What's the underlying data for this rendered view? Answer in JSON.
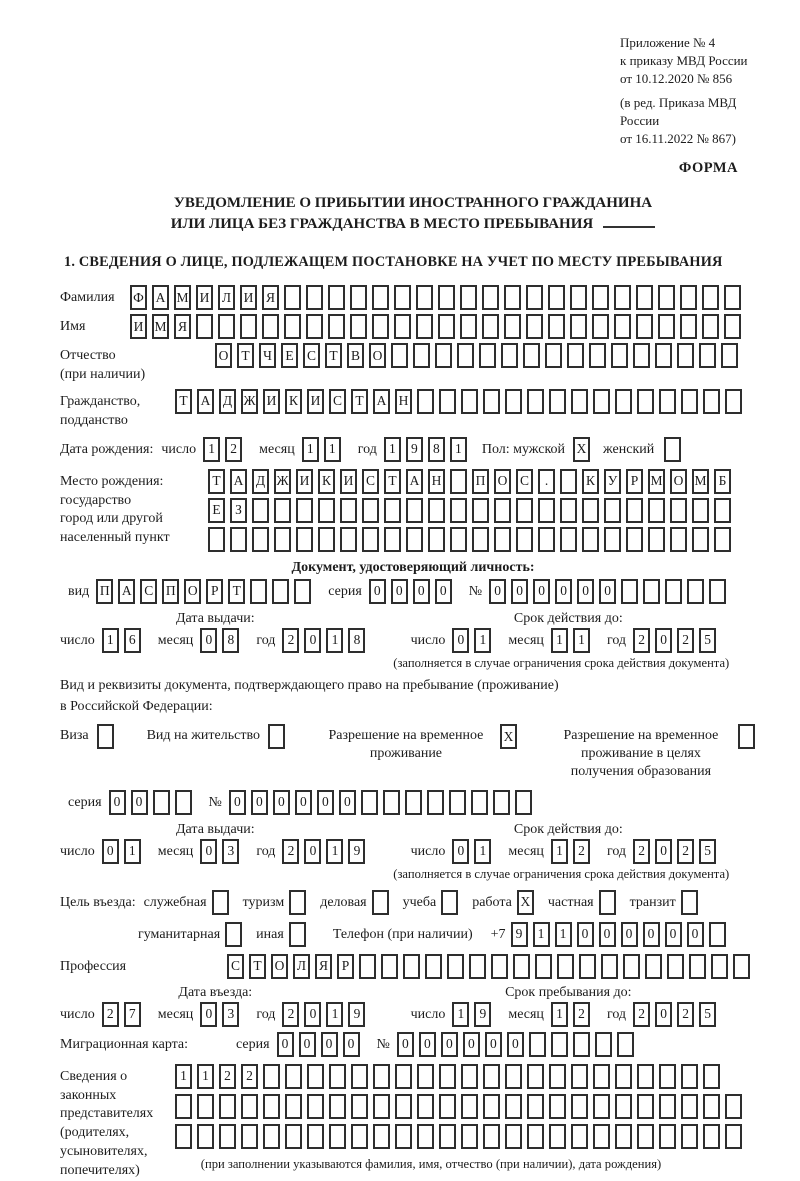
{
  "header": {
    "ref_lines": [
      "Приложение № 4",
      "к приказу МВД России",
      "от 10.12.2020 № 856"
    ],
    "ref_sub_lines": [
      "(в ред. Приказа МВД России",
      "от 16.11.2022 № 867)"
    ],
    "forma": "ФОРМА"
  },
  "title": {
    "line1": "УВЕДОМЛЕНИЕ О ПРИБЫТИИ ИНОСТРАННОГО ГРАЖДАНИНА",
    "line2": "ИЛИ ЛИЦА БЕЗ ГРАЖДАНСТВА В МЕСТО ПРЕБЫВАНИЯ"
  },
  "section1": {
    "heading": "1. СВЕДЕНИЯ О ЛИЦЕ, ПОДЛЕЖАЩЕМ ПОСТАНОВКЕ НА УЧЕТ ПО МЕСТУ ПРЕБЫВАНИЯ"
  },
  "fields": {
    "surname": {
      "label": "Фамилия",
      "boxes": {
        "chars": "ФАМИЛИЯ",
        "total": 28,
        "name": "surname-char-box"
      }
    },
    "name": {
      "label": "Имя",
      "boxes": {
        "chars": "ИМЯ",
        "total": 28,
        "name": "firstname-char-box"
      }
    },
    "patronymic": {
      "labels": [
        "Отчество",
        "(при наличии)"
      ],
      "boxes": {
        "chars": "ОТЧЕСТВО",
        "total": 24,
        "name": "patronymic-char-box"
      }
    },
    "citizenship": {
      "labels": [
        "Гражданство,",
        "подданство"
      ],
      "boxes": {
        "chars": "ТАДЖИКИСТАН",
        "total": 26,
        "name": "citizenship-char-box"
      }
    },
    "birth_date": {
      "label": "Дата рождения:",
      "segments": [
        {
          "label": "число",
          "chars": "12",
          "total": 2,
          "name": "birth-day-box"
        },
        {
          "label": "месяц",
          "chars": "11",
          "total": 2,
          "name": "birth-month-box"
        },
        {
          "label": "год",
          "chars": "1981",
          "total": 4,
          "name": "birth-year-box"
        }
      ],
      "sex_label": "Пол: мужской",
      "male_box": {
        "chars": "X",
        "total": 1,
        "name": "sex-male-checkbox"
      },
      "female_label": "женский",
      "female_box": {
        "chars": "",
        "total": 1,
        "name": "sex-female-checkbox"
      }
    },
    "birth_place": {
      "labels": [
        "Место рождения:",
        "государство",
        "город или другой",
        "населенный пункт"
      ],
      "rows": [
        {
          "chars": "ТАДЖИКИСТАН ПОС. КУРМОМБ",
          "total": 24,
          "name": "birthplace-row1-box"
        },
        {
          "chars": "ЕЗ",
          "total": 24,
          "name": "birthplace-row2-box"
        },
        {
          "chars": "",
          "total": 24,
          "name": "birthplace-row3-box"
        }
      ]
    }
  },
  "identity_doc": {
    "heading": "Документ, удостоверяющий личность:",
    "segments": [
      {
        "label": "вид",
        "chars": "ПАСПОРТ",
        "total": 10,
        "name": "identity-doc-type-box"
      },
      {
        "label": "серия",
        "chars": "0000",
        "total": 4,
        "name": "identity-doc-series-box"
      },
      {
        "label": "№",
        "chars": "000000",
        "total": 11,
        "name": "identity-doc-number-box"
      }
    ],
    "issue_heading": "Дата выдачи:",
    "issue": [
      {
        "label": "число",
        "chars": "16",
        "total": 2,
        "name": "identity-issue-day-box"
      },
      {
        "label": "месяц",
        "chars": "08",
        "total": 2,
        "name": "identity-issue-month-box"
      },
      {
        "label": "год",
        "chars": "2018",
        "total": 4,
        "name": "identity-issue-year-box"
      }
    ],
    "valid_heading": "Срок действия до:",
    "valid": [
      {
        "label": "число",
        "chars": "01",
        "total": 2,
        "name": "identity-valid-day-box"
      },
      {
        "label": "месяц",
        "chars": "11",
        "total": 2,
        "name": "identity-valid-month-box"
      },
      {
        "label": "год",
        "chars": "2025",
        "total": 4,
        "name": "identity-valid-year-box"
      }
    ],
    "note": "(заполняется в случае ограничения срока действия документа)"
  },
  "residence": {
    "intro_lines": [
      "Вид и реквизиты документа, подтверждающего право на пребывание (проживание)",
      "в Российской Федерации:"
    ],
    "options": [
      {
        "label": "Виза",
        "box": {
          "chars": "",
          "total": 1,
          "name": "visa-checkbox"
        }
      },
      {
        "label": "Вид на жительство",
        "box": {
          "chars": "",
          "total": 1,
          "name": "residence-permit-checkbox"
        }
      },
      {
        "label": "Разрешение на временное проживание",
        "box": {
          "chars": "X",
          "total": 1,
          "name": "temporary-residence-checkbox"
        }
      },
      {
        "label": "Разрешение на временное проживание в целях получения образования",
        "box": {
          "chars": "",
          "total": 1,
          "name": "temporary-residence-education-checkbox"
        }
      }
    ],
    "series_segments": [
      {
        "label": "серия",
        "chars": "00",
        "total": 4,
        "name": "residence-series-box"
      },
      {
        "label": "№",
        "chars": "000000",
        "total": 14,
        "name": "residence-number-box"
      }
    ],
    "issue_heading": "Дата выдачи:",
    "issue": [
      {
        "label": "число",
        "chars": "01",
        "total": 2,
        "name": "residence-issue-day-box"
      },
      {
        "label": "месяц",
        "chars": "03",
        "total": 2,
        "name": "residence-issue-month-box"
      },
      {
        "label": "год",
        "chars": "2019",
        "total": 4,
        "name": "residence-issue-year-box"
      }
    ],
    "valid_heading": "Срок действия до:",
    "valid": [
      {
        "label": "число",
        "chars": "01",
        "total": 2,
        "name": "residence-valid-day-box"
      },
      {
        "label": "месяц",
        "chars": "12",
        "total": 2,
        "name": "residence-valid-month-box"
      },
      {
        "label": "год",
        "chars": "2025",
        "total": 4,
        "name": "residence-valid-year-box"
      }
    ],
    "note": "(заполняется в случае ограничения срока действия документа)"
  },
  "purpose": {
    "label": "Цель въезда:",
    "row1": [
      {
        "label": "служебная",
        "chars": "",
        "total": 1,
        "name": "purpose-official-checkbox"
      },
      {
        "label": "туризм",
        "chars": "",
        "total": 1,
        "name": "purpose-tourism-checkbox"
      },
      {
        "label": "деловая",
        "chars": "",
        "total": 1,
        "name": "purpose-business-checkbox"
      },
      {
        "label": "учеба",
        "chars": "",
        "total": 1,
        "name": "purpose-study-checkbox"
      },
      {
        "label": "работа",
        "chars": "X",
        "total": 1,
        "name": "purpose-work-checkbox"
      },
      {
        "label": "частная",
        "chars": "",
        "total": 1,
        "name": "purpose-private-checkbox"
      },
      {
        "label": "транзит",
        "chars": "",
        "total": 1,
        "name": "purpose-transit-checkbox"
      }
    ],
    "row2": [
      {
        "label": "гуманитарная",
        "chars": "",
        "total": 1,
        "name": "purpose-humanitarian-checkbox"
      },
      {
        "label": "иная",
        "chars": "",
        "total": 1,
        "name": "purpose-other-checkbox"
      }
    ],
    "phone_label": "Телефон (при наличии)",
    "phone": [
      {
        "label": "+7",
        "chars": "911000000",
        "total": 10,
        "name": "phone-digit-box"
      }
    ]
  },
  "profession": {
    "label": "Профессия",
    "boxes": {
      "chars": "СТОЛЯР",
      "total": 24,
      "name": "profession-char-box"
    }
  },
  "entry": {
    "entry_heading": "Дата въезда:",
    "entry": [
      {
        "label": "число",
        "chars": "27",
        "total": 2,
        "name": "entry-day-box"
      },
      {
        "label": "месяц",
        "chars": "03",
        "total": 2,
        "name": "entry-month-box"
      },
      {
        "label": "год",
        "chars": "2019",
        "total": 4,
        "name": "entry-year-box"
      }
    ],
    "stay_heading": "Срок пребывания до:",
    "stay": [
      {
        "label": "число",
        "chars": "19",
        "total": 2,
        "name": "stay-day-box"
      },
      {
        "label": "месяц",
        "chars": "12",
        "total": 2,
        "name": "stay-month-box"
      },
      {
        "label": "год",
        "chars": "2025",
        "total": 4,
        "name": "stay-year-box"
      }
    ]
  },
  "migration": {
    "label": "Миграционная карта:",
    "segments": [
      {
        "label": "серия",
        "chars": "0000",
        "total": 4,
        "name": "migration-series-box"
      },
      {
        "label": "№",
        "chars": "000000",
        "total": 11,
        "name": "migration-number-box"
      }
    ]
  },
  "reps": {
    "labels": [
      "Сведения о",
      "законных",
      "представителях",
      "(родителях,",
      "усыновителях,",
      "попечителях)"
    ],
    "rows": [
      {
        "chars": "1122",
        "total": 25,
        "name": "representatives-row1-box"
      },
      {
        "chars": "",
        "total": 26,
        "name": "representatives-row2-box"
      },
      {
        "chars": "",
        "total": 26,
        "name": "representatives-row3-box"
      }
    ],
    "note": "(при заполнении указываются фамилия, имя, отчество (при наличии), дата рождения)"
  }
}
